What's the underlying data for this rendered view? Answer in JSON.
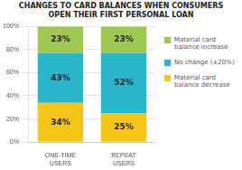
{
  "chart_data": {
    "type": "bar",
    "title": "CHANGES TO CARD BALANCES WHEN CONSUMERS\nOPEN THEIR FIRST PERSONAL LOAN",
    "categories": [
      "ONE-TIME\nUSERS",
      "REPEAT\nUSERS"
    ],
    "series": [
      {
        "name": "Material card\nbalance decrease",
        "color": "#f5c518",
        "values": [
          34,
          25
        ],
        "value_labels": [
          "34%",
          "25%"
        ]
      },
      {
        "name": "No change (±20%)",
        "color": "#29b5cc",
        "values": [
          43,
          52
        ],
        "value_labels": [
          "43%",
          "52%"
        ]
      },
      {
        "name": "Material card\nbalance increase",
        "color": "#a0c850",
        "values": [
          23,
          23
        ],
        "value_labels": [
          "23%",
          "23%"
        ]
      }
    ],
    "stacked": true,
    "data_labels": true,
    "ylim": [
      0,
      100
    ],
    "yticks": [
      {
        "value": 0,
        "label": "0%"
      },
      {
        "value": 20,
        "label": "20%"
      },
      {
        "value": 40,
        "label": "40%"
      },
      {
        "value": 60,
        "label": "60%"
      },
      {
        "value": 80,
        "label": "80%"
      },
      {
        "value": 100,
        "label": "100%"
      }
    ],
    "grid": true,
    "legend": "right"
  }
}
